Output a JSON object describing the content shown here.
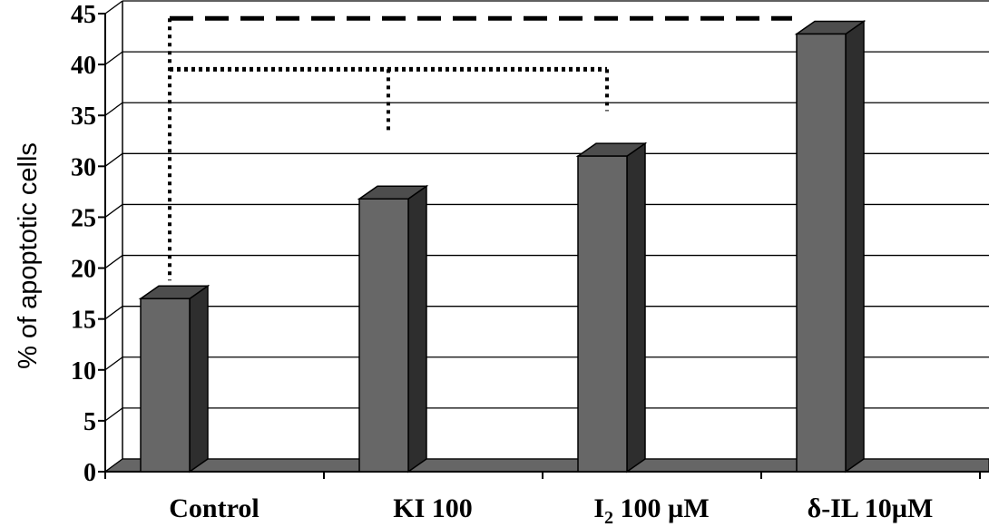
{
  "chart_data": {
    "type": "bar",
    "style": "3d",
    "categories": [
      "Control",
      "KI 100",
      "I2 100 µM",
      "δ-IL 10µM"
    ],
    "category_display": [
      {
        "main": "Control",
        "sub": "",
        "rest": ""
      },
      {
        "main": "KI 100",
        "sub": "",
        "rest": ""
      },
      {
        "main": "I",
        "sub": "2",
        "rest": " 100 µM"
      },
      {
        "main": "δ-IL 10µM",
        "sub": "",
        "rest": ""
      }
    ],
    "values": [
      17,
      26.8,
      31,
      43
    ],
    "title": "",
    "xlabel": "",
    "ylabel": "% of apoptotic cells",
    "ylim": [
      0,
      45
    ],
    "yticks": [
      0,
      5,
      10,
      15,
      20,
      25,
      30,
      35,
      40,
      45
    ],
    "grid": true,
    "legend": "none",
    "colors": {
      "bar_front": "#676767",
      "bar_top": "#4d4d4d",
      "bar_side": "#2e2e2e",
      "floor": "#666666"
    },
    "comparisons": [
      {
        "from": "Control",
        "to": "δ-IL 10µM",
        "style": "dashed",
        "level": 44
      },
      {
        "from": "Control",
        "to": "I2 100 µM",
        "style": "dotted",
        "level": 39,
        "via": "KI 100"
      }
    ]
  }
}
